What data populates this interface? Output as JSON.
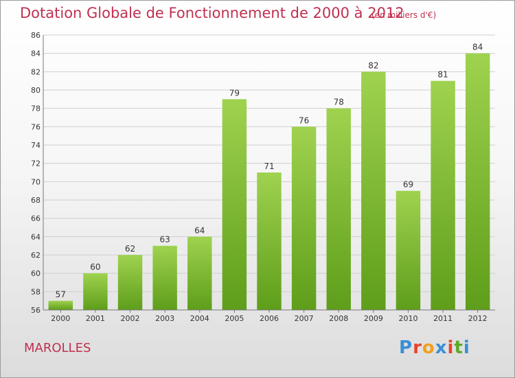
{
  "header": {
    "title": "Dotation Globale de Fonctionnement de 2000 à 2012",
    "subtitle": "(en milliers d'€)"
  },
  "footer": {
    "place": "MAROLLES",
    "logo": "Proxiti",
    "logo_colors": [
      "#3a8fd6",
      "#e8432d",
      "#f0a020",
      "#3a8fd6",
      "#e8432d",
      "#5aaa2a",
      "#3a8fd6"
    ]
  },
  "colors": {
    "title": "#c0304f",
    "bar_top": "#9fd24f",
    "bar_bottom": "#5e9e1a",
    "grid": "#cfcfcf"
  },
  "chart_data": {
    "type": "bar",
    "categories": [
      "2000",
      "2001",
      "2002",
      "2003",
      "2004",
      "2005",
      "2006",
      "2007",
      "2008",
      "2009",
      "2010",
      "2011",
      "2012"
    ],
    "values": [
      57,
      60,
      62,
      63,
      64,
      79,
      71,
      76,
      78,
      82,
      69,
      81,
      84
    ],
    "ylim": [
      56,
      86
    ],
    "yticks": [
      56,
      58,
      60,
      62,
      64,
      66,
      68,
      70,
      72,
      74,
      76,
      78,
      80,
      82,
      84,
      86
    ],
    "grid": true,
    "data_labels": true
  }
}
